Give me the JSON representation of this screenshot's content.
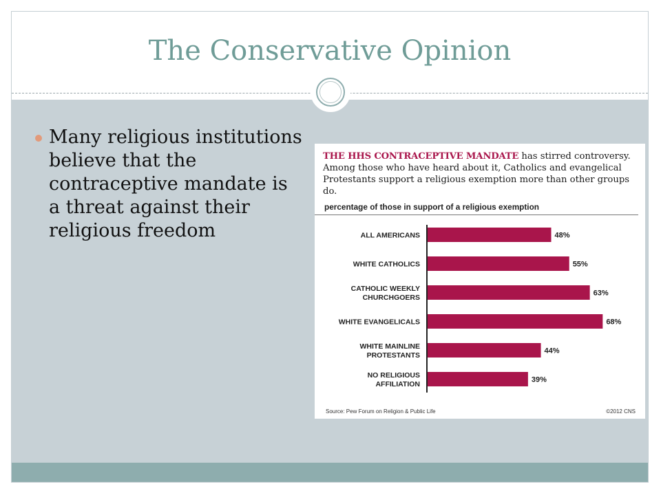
{
  "slide": {
    "title": "The Conservative Opinion",
    "bullets": [
      "Many religious institutions believe that the contraceptive mandate is a threat against their religious freedom"
    ]
  },
  "chart_image": {
    "intro_lead": "THE HHS CONTRACEPTIVE MANDATE",
    "intro_rest": " has stirred controversy. Among those who have heard about it, Catholics and evangelical Protestants support a religious exemption more than other groups do.",
    "source": "Source: Pew Forum on Religion & Public Life",
    "credit": "©2012 CNS"
  },
  "chart_data": {
    "type": "bar",
    "orientation": "horizontal",
    "title": "percentage of those in support of a religious exemption",
    "categories": [
      [
        "ALL AMERICANS"
      ],
      [
        "WHITE CATHOLICS"
      ],
      [
        "CATHOLIC WEEKLY",
        "CHURCHGOERS"
      ],
      [
        "WHITE EVANGELICALS"
      ],
      [
        "WHITE MAINLINE",
        "PROTESTANTS"
      ],
      [
        "NO RELIGIOUS",
        "AFFILIATION"
      ]
    ],
    "values": [
      48,
      55,
      63,
      68,
      44,
      39
    ],
    "value_labels": [
      "48%",
      "55%",
      "63%",
      "68%",
      "44%",
      "39%"
    ],
    "xlim": [
      0,
      70
    ],
    "bar_color": "#a9154b",
    "grid": false
  }
}
